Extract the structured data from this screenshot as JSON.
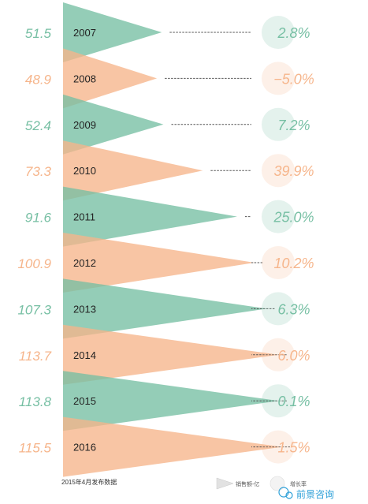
{
  "chart_data": {
    "type": "bar",
    "title": "",
    "categories": [
      "2007",
      "2008",
      "2009",
      "2010",
      "2011",
      "2012",
      "2013",
      "2014",
      "2015",
      "2016"
    ],
    "series": [
      {
        "name": "销售额-亿",
        "values": [
          51.5,
          48.9,
          52.4,
          73.3,
          91.6,
          100.9,
          107.3,
          113.7,
          113.8,
          115.5
        ]
      },
      {
        "name": "增长率",
        "values": [
          2.8,
          -5.0,
          7.2,
          39.9,
          25.0,
          10.2,
          6.3,
          6.0,
          0.1,
          1.5
        ]
      }
    ],
    "value_labels": [
      "51.5",
      "48.9",
      "52.4",
      "73.3",
      "91.6",
      "100.9",
      "107.3",
      "113.7",
      "113.8",
      "115.5"
    ],
    "growth_labels": [
      "2.8%",
      "−5.0%",
      "7.2%",
      "39.9%",
      "25.0%",
      "10.2%",
      "6.3%",
      "6.0%",
      "0.1%",
      "1.5%"
    ],
    "colors": [
      "#76bfa3",
      "#f6b58b"
    ],
    "note": "2015年4月发布数据",
    "legend": {
      "sales": "销售额-亿",
      "growth": "增长率",
      "placement": "bottom"
    }
  },
  "watermark": {
    "text": "前景咨询",
    "color": "#2ea0d8"
  }
}
